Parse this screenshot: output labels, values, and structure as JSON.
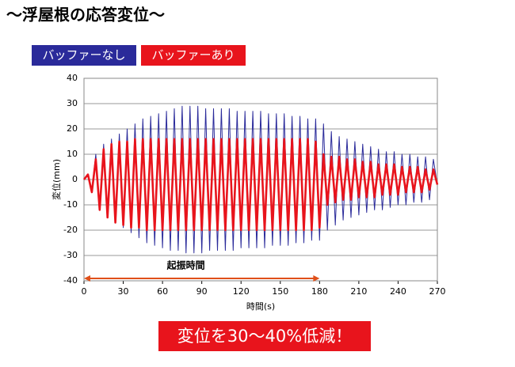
{
  "chart_data": {
    "type": "line",
    "title": "〜浮屋根の応答変位〜",
    "xlabel": "時間(s)",
    "ylabel": "変位(mm)",
    "annotation": {
      "label": "起振時間",
      "start": 0,
      "end": 180,
      "color": "#e0501a"
    },
    "callout": "変位を30〜40%低減！",
    "xlim": [
      0,
      270
    ],
    "xticks": [
      0,
      30,
      60,
      90,
      120,
      150,
      180,
      210,
      240,
      270
    ],
    "ylim": [
      -40,
      40
    ],
    "yticks": [
      -40,
      -30,
      -20,
      -10,
      0,
      10,
      20,
      30,
      40
    ],
    "grid": true,
    "x": [
      0,
      3,
      6,
      9,
      12,
      15,
      18,
      21,
      24,
      27,
      30,
      33,
      36,
      39,
      42,
      45,
      48,
      51,
      54,
      57,
      60,
      63,
      66,
      69,
      72,
      75,
      78,
      81,
      84,
      87,
      90,
      93,
      96,
      99,
      102,
      105,
      108,
      111,
      114,
      117,
      120,
      123,
      126,
      129,
      132,
      135,
      138,
      141,
      144,
      147,
      150,
      153,
      156,
      159,
      162,
      165,
      168,
      171,
      174,
      177,
      180,
      183,
      186,
      189,
      192,
      195,
      198,
      201,
      204,
      207,
      210,
      213,
      216,
      219,
      222,
      225,
      228,
      231,
      234,
      237,
      240,
      243,
      246,
      249,
      252,
      255,
      258,
      261,
      264,
      267,
      270
    ],
    "series": [
      {
        "name": "バッファーなし",
        "color": "#2a2a9a",
        "width": 1,
        "values": [
          0,
          2,
          -4,
          10,
          -12,
          14,
          -15,
          16,
          -17,
          18,
          -19,
          20,
          -21,
          22,
          -23,
          24,
          -25,
          25,
          -26,
          26,
          -27,
          27,
          -28,
          28,
          -28,
          29,
          -29,
          29,
          -29,
          29,
          -29,
          28,
          -28,
          28,
          -28,
          28,
          -28,
          28,
          -28,
          27,
          -27,
          27,
          -27,
          27,
          -27,
          27,
          -27,
          26,
          -26,
          26,
          -26,
          26,
          -26,
          25,
          -25,
          25,
          -25,
          24,
          -24,
          24,
          -24,
          22,
          -20,
          19,
          -18,
          17,
          -16,
          16,
          -15,
          15,
          -14,
          14,
          -13,
          13,
          -12,
          12,
          -12,
          11,
          -11,
          11,
          -10,
          10,
          -10,
          10,
          -9,
          9,
          -9,
          9,
          -8,
          8,
          -2
        ]
      },
      {
        "name": "バッファーあり",
        "color": "#e8141c",
        "width": 2.6,
        "values": [
          0,
          2,
          -5,
          8,
          -12,
          12,
          -15,
          14,
          -17,
          15,
          -18,
          15,
          -19,
          16,
          -19,
          16,
          -20,
          16,
          -20,
          16,
          -20,
          16,
          -20,
          16,
          -20,
          16,
          -20,
          16,
          -20,
          16,
          -20,
          16,
          -20,
          16,
          -20,
          16,
          -20,
          16,
          -20,
          16,
          -20,
          16,
          -20,
          16,
          -20,
          16,
          -20,
          16,
          -20,
          16,
          -20,
          16,
          -20,
          16,
          -20,
          16,
          -20,
          16,
          -20,
          15,
          -19,
          10,
          -10,
          9,
          -9,
          9,
          -8,
          8,
          -8,
          8,
          -7,
          7,
          -7,
          7,
          -7,
          6,
          -6,
          6,
          -6,
          6,
          -6,
          5,
          -5,
          5,
          -5,
          5,
          -5,
          4,
          -4,
          4,
          -2
        ]
      }
    ]
  }
}
